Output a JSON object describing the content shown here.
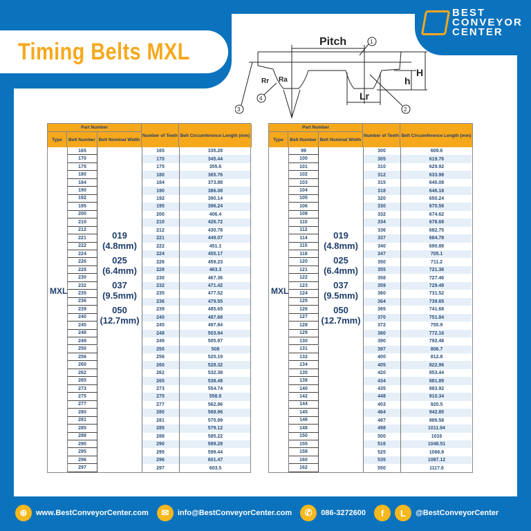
{
  "title": "Timing Belts MXL",
  "logo": {
    "line1": "BEST",
    "line2": "CONVEYOR",
    "line3": "CENTER"
  },
  "diagram": {
    "pitch": "Pitch",
    "labels": [
      "1",
      "2",
      "3",
      "4"
    ],
    "Rr": "Rr",
    "Ra": "Ra",
    "Lr": "Lr",
    "h": "h",
    "H": "H"
  },
  "colors": {
    "brand_blue": "#0b72bd",
    "accent_orange": "#f6a81c"
  },
  "table_headers": {
    "part_number": "Part Number",
    "type": "Type",
    "belt_number": "Belt Number",
    "belt_width": "Belt Nominal Width",
    "teeth": "Number of Teeth",
    "length": "Belt Circumference Length (mm)"
  },
  "type": "MXL",
  "widths": [
    {
      "code": "019",
      "mm": "(4.8mm)"
    },
    {
      "code": "025",
      "mm": "(6.4mm)"
    },
    {
      "code": "037",
      "mm": "(9.5mm)"
    },
    {
      "code": "050",
      "mm": "(12.7mm)"
    }
  ],
  "left_table": {
    "belt": [
      "165",
      "170",
      "175",
      "180",
      "184",
      "190",
      "192",
      "195",
      "200",
      "210",
      "212",
      "221",
      "222",
      "224",
      "226",
      "228",
      "230",
      "232",
      "235",
      "236",
      "239",
      "240",
      "245",
      "248",
      "249",
      "250",
      "256",
      "260",
      "262",
      "265",
      "273",
      "275",
      "277",
      "280",
      "281",
      "285",
      "288",
      "290",
      "295",
      "296",
      "297"
    ],
    "teeth": [
      "165",
      "170",
      "175",
      "180",
      "184",
      "190",
      "192",
      "195",
      "200",
      "210",
      "212",
      "221",
      "222",
      "224",
      "226",
      "228",
      "230",
      "232",
      "235",
      "236",
      "239",
      "240",
      "245",
      "248",
      "249",
      "250",
      "256",
      "260",
      "262",
      "265",
      "273",
      "275",
      "277",
      "280",
      "281",
      "285",
      "288",
      "290",
      "295",
      "296",
      "297"
    ],
    "length": [
      "335.28",
      "345.44",
      "355.6",
      "365.76",
      "373.88",
      "386.08",
      "390.14",
      "396.24",
      "406.4",
      "426.72",
      "430.78",
      "449.07",
      "451.1",
      "455.17",
      "459.23",
      "463.3",
      "467.36",
      "471.42",
      "477.52",
      "479.55",
      "485.65",
      "487.68",
      "497.84",
      "503.94",
      "505.97",
      "508",
      "520.19",
      "528.32",
      "532.38",
      "538.48",
      "554.74",
      "558.8",
      "562.86",
      "568.96",
      "570.99",
      "579.12",
      "585.22",
      "589.28",
      "599.44",
      "601.47",
      "603.5"
    ]
  },
  "right_table": {
    "belt": [
      "99",
      "100",
      "101",
      "102",
      "103",
      "104",
      "105",
      "106",
      "108",
      "110",
      "112",
      "114",
      "115",
      "118",
      "120",
      "121",
      "122",
      "123",
      "124",
      "125",
      "126",
      "127",
      "128",
      "129",
      "130",
      "131",
      "132",
      "134",
      "135",
      "138",
      "140",
      "142",
      "144",
      "145",
      "146",
      "148",
      "150",
      "155",
      "158",
      "160",
      "162"
    ],
    "teeth": [
      "300",
      "305",
      "310",
      "312",
      "315",
      "318",
      "320",
      "330",
      "332",
      "334",
      "336",
      "337",
      "340",
      "347",
      "350",
      "355",
      "358",
      "359",
      "360",
      "364",
      "365",
      "370",
      "372",
      "380",
      "390",
      "397",
      "400",
      "405",
      "420",
      "434",
      "435",
      "448",
      "453",
      "464",
      "487",
      "498",
      "500",
      "516",
      "525",
      "535",
      "550"
    ],
    "length": [
      "609.6",
      "619.76",
      "629.92",
      "633.98",
      "640.08",
      "646.18",
      "650.24",
      "670.56",
      "674.62",
      "678.68",
      "682.75",
      "684.78",
      "690.88",
      "705.1",
      "711.2",
      "721.36",
      "727.46",
      "729.49",
      "731.52",
      "739.65",
      "741.68",
      "751.84",
      "755.9",
      "772.16",
      "792.48",
      "806.7",
      "812.8",
      "822.96",
      "853.44",
      "881.89",
      "883.92",
      "910.34",
      "920.5",
      "942.85",
      "989.58",
      "1011.94",
      "1016",
      "1048.51",
      "1066.8",
      "1087.12",
      "1117.6"
    ]
  },
  "footer": {
    "website": "www.BestConveyorCenter.com",
    "email": "info@BestConveyorCenter.com",
    "phone": "086-3272600",
    "social": "@BestConveyorCenter",
    "icons": [
      "globe-icon",
      "mail-icon",
      "phone-icon",
      "facebook-icon",
      "line-icon"
    ]
  }
}
